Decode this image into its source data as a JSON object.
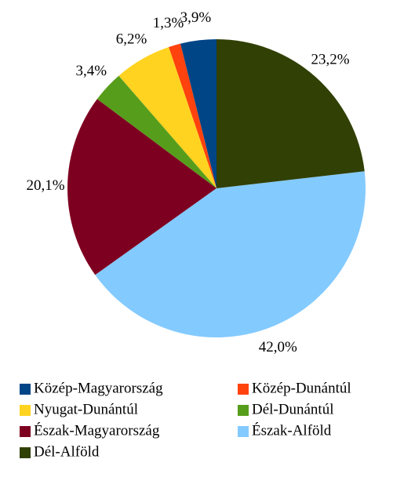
{
  "chart_data": {
    "type": "pie",
    "categories": [
      "Közép-Magyarország",
      "Közép-Dunántúl",
      "Nyugat-Dunántúl",
      "Dél-Dunántúl",
      "Észak-Magyarország",
      "Észak-Alföld",
      "Dél-Alföld"
    ],
    "values": [
      3.9,
      1.3,
      6.2,
      3.4,
      20.1,
      42.0,
      23.2
    ],
    "value_labels": [
      "3,9%",
      "1,3%",
      "6,2%",
      "3,4%",
      "20,1%",
      "42,0%",
      "23,2%"
    ],
    "colors": [
      "#004586",
      "#ff420e",
      "#ffd320",
      "#579d1c",
      "#7e0021",
      "#83caff",
      "#314004"
    ],
    "legend": "bottom"
  }
}
